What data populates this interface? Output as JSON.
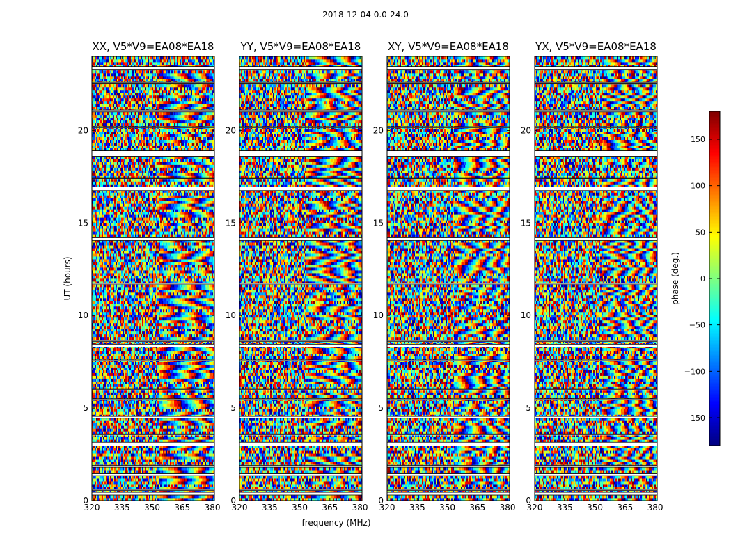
{
  "chart_data": {
    "type": "heatmap",
    "suptitle": "2018-12-04 0.0-24.0",
    "xlabel": "frequency (MHz)",
    "ylabel": "UT (hours)",
    "colorbar_label": "phase (deg.)",
    "x_range": [
      320,
      381
    ],
    "y_range": [
      0,
      24
    ],
    "xticks": [
      320,
      335,
      350,
      365,
      380
    ],
    "yticks": [
      0,
      5,
      10,
      15,
      20
    ],
    "clim": [
      -180,
      180
    ],
    "cticks": [
      150,
      100,
      50,
      0,
      -50,
      -100,
      -150
    ],
    "ctick_labels": [
      "150",
      "100",
      "50",
      "0",
      "−50",
      "−100",
      "−150"
    ],
    "colormap": "jet",
    "panels": [
      {
        "title": "XX, V5*V9=EA08*EA18"
      },
      {
        "title": "YY, V5*V9=EA08*EA18"
      },
      {
        "title": "XY, V5*V9=EA08*EA18"
      },
      {
        "title": "YX, V5*V9=EA08*EA18"
      }
    ],
    "flagged_ut_hours": [
      [
        0.3,
        0.45
      ],
      [
        0.55,
        0.6
      ],
      [
        1.35,
        1.45
      ],
      [
        1.8,
        1.9
      ],
      [
        2.95,
        3.15
      ],
      [
        3.55,
        3.6
      ],
      [
        4.45,
        4.55
      ],
      [
        5.45,
        5.5
      ],
      [
        6.0,
        6.05
      ],
      [
        7.55,
        7.6
      ],
      [
        8.3,
        8.45
      ],
      [
        8.6,
        8.65
      ],
      [
        11.7,
        11.75
      ],
      [
        14.05,
        14.2
      ],
      [
        16.75,
        16.95
      ],
      [
        17.4,
        17.45
      ],
      [
        18.6,
        18.9
      ],
      [
        20.15,
        20.2
      ],
      [
        21.0,
        21.1
      ],
      [
        22.55,
        22.6
      ],
      [
        23.3,
        23.45
      ]
    ]
  }
}
